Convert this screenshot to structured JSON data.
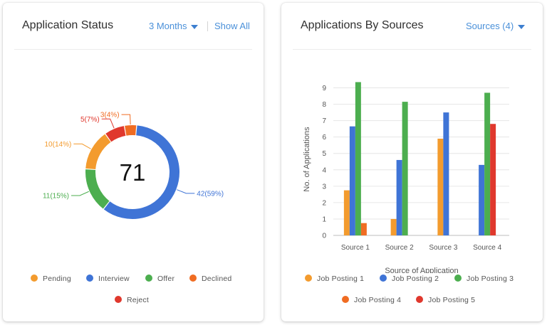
{
  "left_card": {
    "title": "Application Status",
    "period": "3 Months",
    "show_all": "Show All",
    "total": "71",
    "slices": [
      {
        "label": "42(59%)",
        "value": 42,
        "color": "#3f74d6"
      },
      {
        "label": "11(15%)",
        "value": 11,
        "color": "#4cae4f"
      },
      {
        "label": "10(14%)",
        "value": 10,
        "color": "#f39b2e"
      },
      {
        "label": "5(7%)",
        "value": 5,
        "color": "#e0382d"
      },
      {
        "label": "3(4%)",
        "value": 3,
        "color": "#f06c22"
      }
    ],
    "legend": [
      {
        "label": "Pending",
        "color": "#f39b2e"
      },
      {
        "label": "Interview",
        "color": "#3f74d6"
      },
      {
        "label": "Offer",
        "color": "#4cae4f"
      },
      {
        "label": "Declined",
        "color": "#f06c22"
      },
      {
        "label": "Reject",
        "color": "#e0382d"
      }
    ]
  },
  "right_card": {
    "title": "Applications By Sources",
    "filter": "Sources (4)",
    "legend": [
      {
        "label": "Job Posting 1",
        "color": "#f39b2e"
      },
      {
        "label": "Job Posting 2",
        "color": "#3f74d6"
      },
      {
        "label": "Job Posting 3",
        "color": "#4cae4f"
      },
      {
        "label": "Job Posting 4",
        "color": "#f06c22"
      },
      {
        "label": "Job Posting 5",
        "color": "#e0382d"
      }
    ]
  },
  "chart_data": [
    {
      "type": "pie",
      "categories": [
        "Interview",
        "Offer",
        "Pending",
        "Reject",
        "Declined"
      ],
      "values": [
        42,
        11,
        10,
        5,
        3
      ],
      "labels": [
        "42(59%)",
        "11(15%)",
        "10(14%)",
        "5(7%)",
        "3(4%)"
      ],
      "center_label": "71",
      "title": "Application Status"
    },
    {
      "type": "bar",
      "title": "Applications By Sources",
      "categories": [
        "Source 1",
        "Source 2",
        "Source 3",
        "Source 4"
      ],
      "series": [
        {
          "name": "Job Posting 1",
          "color": "#f39b2e",
          "values": [
            2.75,
            1.0,
            5.9,
            null
          ]
        },
        {
          "name": "Job Posting 2",
          "color": "#3f74d6",
          "values": [
            6.65,
            4.6,
            7.5,
            4.3
          ]
        },
        {
          "name": "Job Posting 3",
          "color": "#4cae4f",
          "values": [
            9.35,
            8.15,
            null,
            8.7
          ]
        },
        {
          "name": "Job Posting 4",
          "color": "#f06c22",
          "values": [
            0.75,
            null,
            null,
            null
          ]
        },
        {
          "name": "Job Posting 5",
          "color": "#e0382d",
          "values": [
            null,
            null,
            null,
            6.8
          ]
        }
      ],
      "xlabel": "Source of Application",
      "ylabel": "No. of Applications",
      "ylim": [
        0,
        9
      ],
      "yticks": [
        0,
        1,
        2,
        3,
        4,
        5,
        6,
        7,
        8,
        9
      ],
      "grid": true,
      "legend": "bottom"
    }
  ]
}
